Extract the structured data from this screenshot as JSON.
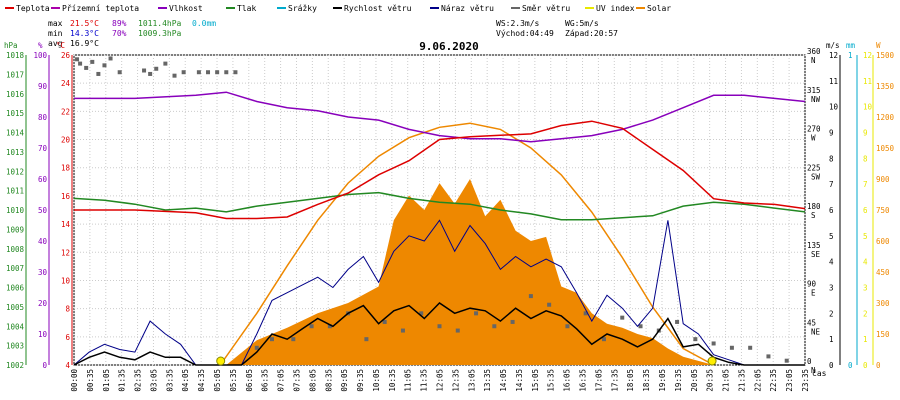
{
  "legend": [
    {
      "label": "Teplota",
      "color": "#dd0000"
    },
    {
      "label": "Přízemní teplota",
      "color": "#aa00aa"
    },
    {
      "label": "Vlhkost",
      "color": "#8800bb"
    },
    {
      "label": "Tlak",
      "color": "#228822"
    },
    {
      "label": "Srážky",
      "color": "#00aacc"
    },
    {
      "label": "Rychlost větru",
      "color": "#000000"
    },
    {
      "label": "Náraz větru",
      "color": "#000088"
    },
    {
      "label": "Směr větru",
      "color": "#666666"
    },
    {
      "label": "UV index",
      "color": "#e8e800"
    },
    {
      "label": "Solar",
      "color": "#ee8800"
    }
  ],
  "stats": {
    "max_label": "max",
    "max_temp": "21.5°C",
    "max_hum": "89%",
    "max_press": "1011.4hPa",
    "max_rain": "0.0mm",
    "min_label": "min",
    "min_temp": "14.3°C",
    "min_hum": "70%",
    "min_press": "1009.3hPa",
    "avg_label": "avg",
    "avg_temp": "16.9°C",
    "ws": "WS:2.3m/s",
    "wg": "WG:5m/s",
    "sunrise": "Východ:04:49",
    "sunset": "Západ:20:57"
  },
  "chart_data": {
    "type": "line",
    "title": "9.06.2020",
    "xlabel": "čas",
    "x_ticks": [
      "00:00",
      "00:35",
      "01:05",
      "01:35",
      "02:35",
      "03:05",
      "03:35",
      "04:05",
      "04:35",
      "05:05",
      "05:35",
      "06:05",
      "06:35",
      "07:05",
      "07:35",
      "08:05",
      "08:35",
      "09:05",
      "09:35",
      "10:05",
      "10:35",
      "11:05",
      "11:35",
      "12:05",
      "12:35",
      "13:05",
      "13:35",
      "14:05",
      "14:35",
      "15:05",
      "15:35",
      "16:05",
      "16:35",
      "17:05",
      "17:35",
      "18:05",
      "18:35",
      "19:05",
      "19:35",
      "20:05",
      "20:35",
      "21:05",
      "21:35",
      "22:05",
      "22:35",
      "23:05",
      "23:35"
    ],
    "axes": {
      "pressure": {
        "unit": "hPa",
        "range": [
          1002,
          1018
        ],
        "ticks": [
          "1002",
          "1003",
          "1004",
          "1005",
          "1006",
          "1007",
          "1008",
          "1009",
          "1010",
          "1011",
          "1012",
          "1013",
          "1014",
          "1015",
          "1016",
          "1017",
          "1018"
        ]
      },
      "humidity": {
        "unit": "%",
        "range": [
          0,
          100
        ],
        "ticks": [
          "0",
          "10",
          "20",
          "30",
          "40",
          "50",
          "60",
          "70",
          "80",
          "90",
          "100"
        ]
      },
      "temperature": {
        "unit": "°C",
        "range": [
          4,
          26
        ],
        "ticks": [
          "4",
          "6",
          "8",
          "10",
          "12",
          "14",
          "16",
          "18",
          "20",
          "22",
          "24",
          "26"
        ]
      },
      "wind_speed": {
        "unit": "m/s",
        "range": [
          0,
          12
        ],
        "ticks": [
          "0",
          "1",
          "2",
          "3",
          "4",
          "5",
          "6",
          "7",
          "8",
          "9",
          "10",
          "11",
          "12"
        ]
      },
      "wind_direction": {
        "labels": [
          "0 N",
          "45 NE",
          "90 E",
          "135 SE",
          "180 S",
          "225 SW",
          "270 W",
          "315 NW",
          "360 N"
        ]
      },
      "rain": {
        "unit": "mm",
        "range": [
          0,
          1
        ],
        "ticks": [
          "0",
          "1"
        ]
      },
      "uv": {
        "unit": "",
        "range": [
          0,
          12
        ],
        "ticks": [
          "0",
          "1",
          "2",
          "3",
          "4",
          "5",
          "6",
          "7",
          "8",
          "9",
          "10",
          "11",
          "12"
        ]
      },
      "solar": {
        "unit": "W",
        "range": [
          0,
          1500
        ],
        "ticks": [
          "0",
          "150",
          "300",
          "450",
          "600",
          "750",
          "900",
          "1050",
          "1200",
          "1350",
          "1500"
        ]
      }
    },
    "series": [
      {
        "name": "Teplota",
        "color": "#dd0000",
        "axis": "temperature",
        "x": [
          0,
          2,
          4,
          5,
          6,
          7,
          8,
          9,
          10,
          11,
          12,
          13,
          14,
          15,
          16,
          17,
          18,
          19,
          20,
          21,
          22,
          23,
          24
        ],
        "y": [
          15.0,
          15.0,
          14.8,
          14.4,
          14.4,
          14.5,
          15.4,
          16.2,
          17.5,
          18.5,
          20.0,
          20.2,
          20.3,
          20.4,
          21.0,
          21.3,
          20.8,
          19.3,
          17.8,
          15.8,
          15.5,
          15.4,
          15.1
        ]
      },
      {
        "name": "Vlhkost",
        "color": "#8800bb",
        "axis": "humidity",
        "x": [
          0,
          2,
          4,
          5,
          6,
          7,
          8,
          9,
          10,
          11,
          12,
          13,
          14,
          15,
          16,
          17,
          18,
          19,
          20,
          21,
          22,
          23,
          24
        ],
        "y": [
          86,
          86,
          87,
          88,
          85,
          83,
          82,
          80,
          79,
          76,
          74,
          73,
          73,
          72,
          73,
          74,
          76,
          79,
          83,
          87,
          87,
          86,
          85
        ]
      },
      {
        "name": "Tlak",
        "color": "#228822",
        "axis": "pressure",
        "x": [
          0,
          1,
          2,
          3,
          4,
          5,
          6,
          7,
          8,
          9,
          10,
          11,
          12,
          13,
          14,
          15,
          16,
          17,
          18,
          19,
          20,
          21,
          22,
          23,
          24
        ],
        "y": [
          1010.6,
          1010.5,
          1010.3,
          1010.0,
          1010.1,
          1009.9,
          1010.2,
          1010.4,
          1010.6,
          1010.8,
          1010.9,
          1010.6,
          1010.4,
          1010.3,
          1010.0,
          1009.8,
          1009.5,
          1009.5,
          1009.6,
          1009.7,
          1010.2,
          1010.4,
          1010.3,
          1010.1,
          1009.9
        ]
      },
      {
        "name": "Solar",
        "color": "#ee8800",
        "axis": "solar",
        "x": [
          5,
          6,
          7,
          8,
          9,
          10,
          10.5,
          11,
          11.5,
          12,
          12.5,
          13,
          13.5,
          14,
          14.5,
          15,
          15.5,
          16,
          16.5,
          17,
          17.5,
          18,
          18.5,
          19,
          19.5,
          20,
          21
        ],
        "y": [
          0,
          120,
          180,
          250,
          300,
          380,
          700,
          820,
          750,
          880,
          780,
          900,
          720,
          800,
          650,
          600,
          620,
          380,
          350,
          250,
          200,
          180,
          150,
          130,
          80,
          40,
          0
        ]
      },
      {
        "name": "Solar max",
        "color": "#ee8800",
        "axis": "solar",
        "x": [
          4.8,
          6,
          7,
          8,
          9,
          10,
          11,
          12,
          13,
          14,
          15,
          16,
          17,
          18,
          19,
          20,
          21
        ],
        "y": [
          0,
          250,
          480,
          700,
          880,
          1010,
          1100,
          1150,
          1170,
          1140,
          1050,
          920,
          740,
          520,
          280,
          80,
          0
        ]
      },
      {
        "name": "Rychlost větru",
        "color": "#000000",
        "axis": "wind_speed",
        "x": [
          0,
          0.5,
          1,
          1.5,
          2,
          2.5,
          3,
          3.5,
          4,
          4.5,
          5,
          5.5,
          6,
          6.5,
          7,
          7.5,
          8,
          8.5,
          9,
          9.5,
          10,
          10.5,
          11,
          11.5,
          12,
          12.5,
          13,
          13.5,
          14,
          14.5,
          15,
          15.5,
          16,
          16.5,
          17,
          17.5,
          18,
          18.5,
          19,
          19.5,
          20,
          20.5,
          21,
          21.5,
          22,
          22.5,
          23,
          23.5,
          24
        ],
        "y": [
          0,
          0.3,
          0.5,
          0.3,
          0.2,
          0.5,
          0.3,
          0.3,
          0,
          0,
          0,
          0,
          0.5,
          1.2,
          1,
          1.4,
          1.8,
          1.5,
          2,
          2.3,
          1.6,
          2.1,
          2.3,
          1.8,
          2.4,
          2,
          2.2,
          2.1,
          1.7,
          2.2,
          1.8,
          2.1,
          1.9,
          1.4,
          0.8,
          1.2,
          1,
          0.7,
          1,
          1.8,
          0.7,
          0.8,
          0.3,
          0.1,
          0,
          0,
          0,
          0,
          0
        ]
      },
      {
        "name": "Náraz větru",
        "color": "#000088",
        "axis": "wind_speed",
        "x": [
          0,
          0.5,
          1,
          1.5,
          2,
          2.5,
          3,
          3.5,
          4,
          4.5,
          5,
          5.5,
          6,
          6.5,
          7,
          7.5,
          8,
          8.5,
          9,
          9.5,
          10,
          10.5,
          11,
          11.5,
          12,
          12.5,
          13,
          13.5,
          14,
          14.5,
          15,
          15.5,
          16,
          16.5,
          17,
          17.5,
          18,
          18.5,
          19,
          19.5,
          20,
          20.5,
          21,
          21.5,
          22,
          22.5,
          23,
          23.5,
          24
        ],
        "y": [
          0,
          0.5,
          0.8,
          0.6,
          0.5,
          1.7,
          1.2,
          0.8,
          0,
          0,
          0,
          0,
          1.2,
          2.5,
          2.8,
          3.1,
          3.4,
          3,
          3.7,
          4.2,
          3.2,
          4.4,
          5,
          4.8,
          5.6,
          4.4,
          5.4,
          4.7,
          3.7,
          4.2,
          3.8,
          4.1,
          3.8,
          2.8,
          1.7,
          2.7,
          2.2,
          1.5,
          2.2,
          5.6,
          1.6,
          1.2,
          0.4,
          0.2,
          0,
          0,
          0,
          0,
          0
        ]
      },
      {
        "name": "Směr větru",
        "color": "#666666",
        "axis": "wind_direction",
        "x": [
          0.1,
          0.2,
          0.4,
          0.6,
          0.8,
          1.0,
          1.2,
          1.5,
          2.3,
          2.5,
          2.7,
          3.0,
          3.3,
          3.6,
          4.1,
          4.4,
          4.7,
          5.0,
          5.3,
          6.0,
          6.5,
          7.2,
          7.8,
          8.4,
          9.0,
          9.6,
          10.2,
          10.8,
          11.4,
          12.0,
          12.6,
          13.2,
          13.8,
          14.4,
          15.0,
          15.6,
          16.2,
          16.8,
          17.4,
          18.0,
          18.6,
          19.2,
          19.8,
          20.4,
          21.0,
          21.6,
          22.2,
          22.8,
          23.4
        ],
        "y": [
          355,
          350,
          345,
          352,
          338,
          348,
          356,
          340,
          342,
          338,
          344,
          350,
          336,
          340,
          340,
          340,
          340,
          340,
          340,
          20,
          30,
          30,
          45,
          45,
          60,
          30,
          50,
          40,
          60,
          45,
          40,
          60,
          45,
          50,
          80,
          70,
          45,
          60,
          30,
          55,
          45,
          40,
          50,
          30,
          25,
          20,
          20,
          10,
          5
        ]
      }
    ]
  }
}
